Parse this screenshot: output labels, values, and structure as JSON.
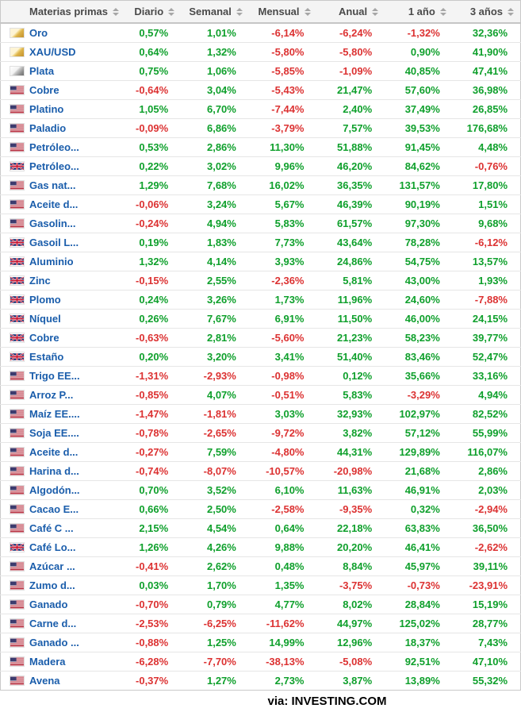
{
  "table": {
    "columns": [
      {
        "label": "Materias primas"
      },
      {
        "label": "Diario"
      },
      {
        "label": "Semanal"
      },
      {
        "label": "Mensual"
      },
      {
        "label": "Anual"
      },
      {
        "label": "1 año"
      },
      {
        "label": "3 años"
      }
    ],
    "rows": [
      {
        "icon": "gold",
        "name": "Oro",
        "values": [
          "0,57%",
          "1,01%",
          "-6,14%",
          "-6,24%",
          "-1,32%",
          "32,36%"
        ]
      },
      {
        "icon": "gold",
        "name": "XAU/USD",
        "values": [
          "0,64%",
          "1,32%",
          "-5,80%",
          "-5,80%",
          "0,90%",
          "41,90%"
        ]
      },
      {
        "icon": "silver",
        "name": "Plata",
        "values": [
          "0,75%",
          "1,06%",
          "-5,85%",
          "-1,09%",
          "40,85%",
          "47,41%"
        ]
      },
      {
        "icon": "us",
        "name": "Cobre",
        "values": [
          "-0,64%",
          "3,04%",
          "-5,43%",
          "21,47%",
          "57,60%",
          "36,98%"
        ]
      },
      {
        "icon": "us",
        "name": "Platino",
        "values": [
          "1,05%",
          "6,70%",
          "-7,44%",
          "2,40%",
          "37,49%",
          "26,85%"
        ]
      },
      {
        "icon": "us",
        "name": "Paladio",
        "values": [
          "-0,09%",
          "6,86%",
          "-3,79%",
          "7,57%",
          "39,53%",
          "176,68%"
        ]
      },
      {
        "icon": "us",
        "name": "Petróleo...",
        "values": [
          "0,53%",
          "2,86%",
          "11,30%",
          "51,88%",
          "91,45%",
          "4,48%"
        ]
      },
      {
        "icon": "uk",
        "name": "Petróleo...",
        "values": [
          "0,22%",
          "3,02%",
          "9,96%",
          "46,20%",
          "84,62%",
          "-0,76%"
        ]
      },
      {
        "icon": "us",
        "name": "Gas nat...",
        "values": [
          "1,29%",
          "7,68%",
          "16,02%",
          "36,35%",
          "131,57%",
          "17,80%"
        ]
      },
      {
        "icon": "us",
        "name": "Aceite d...",
        "values": [
          "-0,06%",
          "3,24%",
          "5,67%",
          "46,39%",
          "90,19%",
          "1,51%"
        ]
      },
      {
        "icon": "us",
        "name": "Gasolin...",
        "values": [
          "-0,24%",
          "4,94%",
          "5,83%",
          "61,57%",
          "97,30%",
          "9,68%"
        ]
      },
      {
        "icon": "uk",
        "name": "Gasoil L...",
        "values": [
          "0,19%",
          "1,83%",
          "7,73%",
          "43,64%",
          "78,28%",
          "-6,12%"
        ]
      },
      {
        "icon": "uk",
        "name": "Aluminio",
        "values": [
          "1,32%",
          "4,14%",
          "3,93%",
          "24,86%",
          "54,75%",
          "13,57%"
        ]
      },
      {
        "icon": "uk",
        "name": "Zinc",
        "values": [
          "-0,15%",
          "2,55%",
          "-2,36%",
          "5,81%",
          "43,00%",
          "1,93%"
        ]
      },
      {
        "icon": "uk",
        "name": "Plomo",
        "values": [
          "0,24%",
          "3,26%",
          "1,73%",
          "11,96%",
          "24,60%",
          "-7,88%"
        ]
      },
      {
        "icon": "uk",
        "name": "Níquel",
        "values": [
          "0,26%",
          "7,67%",
          "6,91%",
          "11,50%",
          "46,00%",
          "24,15%"
        ]
      },
      {
        "icon": "uk",
        "name": "Cobre",
        "values": [
          "-0,63%",
          "2,81%",
          "-5,60%",
          "21,23%",
          "58,23%",
          "39,77%"
        ]
      },
      {
        "icon": "uk",
        "name": "Estaño",
        "values": [
          "0,20%",
          "3,20%",
          "3,41%",
          "51,40%",
          "83,46%",
          "52,47%"
        ]
      },
      {
        "icon": "us",
        "name": "Trigo EE...",
        "values": [
          "-1,31%",
          "-2,93%",
          "-0,98%",
          "0,12%",
          "35,66%",
          "33,16%"
        ]
      },
      {
        "icon": "us",
        "name": "Arroz P...",
        "values": [
          "-0,85%",
          "4,07%",
          "-0,51%",
          "5,83%",
          "-3,29%",
          "4,94%"
        ]
      },
      {
        "icon": "us",
        "name": "Maíz EE....",
        "values": [
          "-1,47%",
          "-1,81%",
          "3,03%",
          "32,93%",
          "102,97%",
          "82,52%"
        ]
      },
      {
        "icon": "us",
        "name": "Soja EE....",
        "values": [
          "-0,78%",
          "-2,65%",
          "-9,72%",
          "3,82%",
          "57,12%",
          "55,99%"
        ]
      },
      {
        "icon": "us",
        "name": "Aceite d...",
        "values": [
          "-0,27%",
          "7,59%",
          "-4,80%",
          "44,31%",
          "129,89%",
          "116,07%"
        ]
      },
      {
        "icon": "us",
        "name": "Harina d...",
        "values": [
          "-0,74%",
          "-8,07%",
          "-10,57%",
          "-20,98%",
          "21,68%",
          "2,86%"
        ]
      },
      {
        "icon": "us",
        "name": "Algodón...",
        "values": [
          "0,70%",
          "3,52%",
          "6,10%",
          "11,63%",
          "46,91%",
          "2,03%"
        ]
      },
      {
        "icon": "us",
        "name": "Cacao E...",
        "values": [
          "0,66%",
          "2,50%",
          "-2,58%",
          "-9,35%",
          "0,32%",
          "-2,94%"
        ]
      },
      {
        "icon": "us",
        "name": "Café C ...",
        "values": [
          "2,15%",
          "4,54%",
          "0,64%",
          "22,18%",
          "63,83%",
          "36,50%"
        ]
      },
      {
        "icon": "uk",
        "name": "Café Lo...",
        "values": [
          "1,26%",
          "4,26%",
          "9,88%",
          "20,20%",
          "46,41%",
          "-2,62%"
        ]
      },
      {
        "icon": "us",
        "name": "Azúcar ...",
        "values": [
          "-0,41%",
          "2,62%",
          "0,48%",
          "8,84%",
          "45,97%",
          "39,11%"
        ]
      },
      {
        "icon": "us",
        "name": "Zumo d...",
        "values": [
          "0,03%",
          "1,70%",
          "1,35%",
          "-3,75%",
          "-0,73%",
          "-23,91%"
        ]
      },
      {
        "icon": "us",
        "name": "Ganado",
        "values": [
          "-0,70%",
          "0,79%",
          "4,77%",
          "8,02%",
          "28,84%",
          "15,19%"
        ]
      },
      {
        "icon": "us",
        "name": "Carne d...",
        "values": [
          "-2,53%",
          "-6,25%",
          "-11,62%",
          "44,97%",
          "125,02%",
          "28,77%"
        ]
      },
      {
        "icon": "us",
        "name": "Ganado ...",
        "values": [
          "-0,88%",
          "1,25%",
          "14,99%",
          "12,96%",
          "18,37%",
          "7,43%"
        ]
      },
      {
        "icon": "us",
        "name": "Madera",
        "values": [
          "-6,28%",
          "-7,70%",
          "-38,13%",
          "-5,08%",
          "92,51%",
          "47,10%"
        ]
      },
      {
        "icon": "us",
        "name": "Avena",
        "values": [
          "-0,37%",
          "1,27%",
          "2,73%",
          "3,87%",
          "13,89%",
          "55,32%"
        ]
      }
    ]
  },
  "icons": {
    "gold": "gold-bar-icon",
    "silver": "silver-bar-icon",
    "us": "us-flag-icon",
    "uk": "uk-flag-icon",
    "sort": "sort-arrows-icon"
  },
  "colors": {
    "positive": "#0fa02c",
    "negative": "#dc3232",
    "name_link": "#1a5dab",
    "header_text": "#4a4a4a"
  },
  "footer": {
    "text": "via: INVESTING.COM"
  }
}
